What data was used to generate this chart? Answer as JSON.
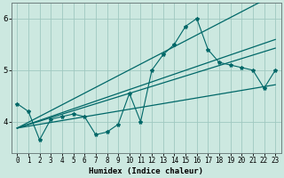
{
  "xlabel": "Humidex (Indice chaleur)",
  "bg_color": "#cce8e0",
  "grid_color": "#9fc8c0",
  "line_color": "#006868",
  "x_values": [
    0,
    1,
    2,
    3,
    4,
    5,
    6,
    7,
    8,
    9,
    10,
    11,
    12,
    13,
    14,
    15,
    16,
    17,
    18,
    19,
    20,
    21,
    22,
    23
  ],
  "y_main": [
    4.35,
    4.2,
    3.65,
    4.05,
    4.1,
    4.15,
    4.1,
    3.75,
    3.8,
    3.95,
    4.55,
    4.0,
    5.0,
    5.3,
    5.5,
    5.85,
    6.0,
    5.4,
    5.15,
    5.1,
    5.05,
    5.0,
    4.65,
    5.0
  ],
  "ylim": [
    3.4,
    6.3
  ],
  "xlim": [
    -0.5,
    23.5
  ],
  "yticks": [
    4,
    5,
    6
  ],
  "xticks": [
    0,
    1,
    2,
    3,
    4,
    5,
    6,
    7,
    8,
    9,
    10,
    11,
    12,
    13,
    14,
    15,
    16,
    17,
    18,
    19,
    20,
    21,
    22,
    23
  ],
  "figsize": [
    3.2,
    2.0
  ],
  "dpi": 100
}
